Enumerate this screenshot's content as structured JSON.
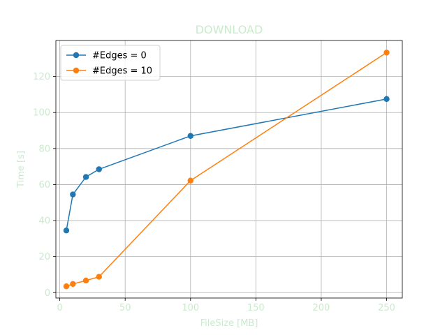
{
  "chart_data": {
    "type": "line",
    "title": "DOWNLOAD",
    "xlabel": "FileSize [MB]",
    "ylabel": "Time [s]",
    "xlim": [
      -3,
      262
    ],
    "ylim": [
      -3,
      140
    ],
    "xticks": [
      0,
      50,
      100,
      150,
      200,
      250
    ],
    "yticks": [
      0,
      20,
      40,
      60,
      80,
      100,
      120
    ],
    "grid": true,
    "legend_position": "top-left",
    "series": [
      {
        "name": "#Edges = 0",
        "color": "#1f77b4",
        "x": [
          5,
          10,
          20,
          30,
          100,
          250
        ],
        "y": [
          34.5,
          54.5,
          64.2,
          68.5,
          87.0,
          107.5
        ]
      },
      {
        "name": "#Edges = 10",
        "color": "#ff7f0e",
        "x": [
          5,
          10,
          20,
          30,
          100,
          250
        ],
        "y": [
          3.5,
          4.8,
          6.7,
          8.8,
          62.2,
          133.3
        ]
      }
    ]
  },
  "colors": {
    "text_accent": "#c9ebcc",
    "grid": "#b0b0b0",
    "axes": "#000000"
  }
}
